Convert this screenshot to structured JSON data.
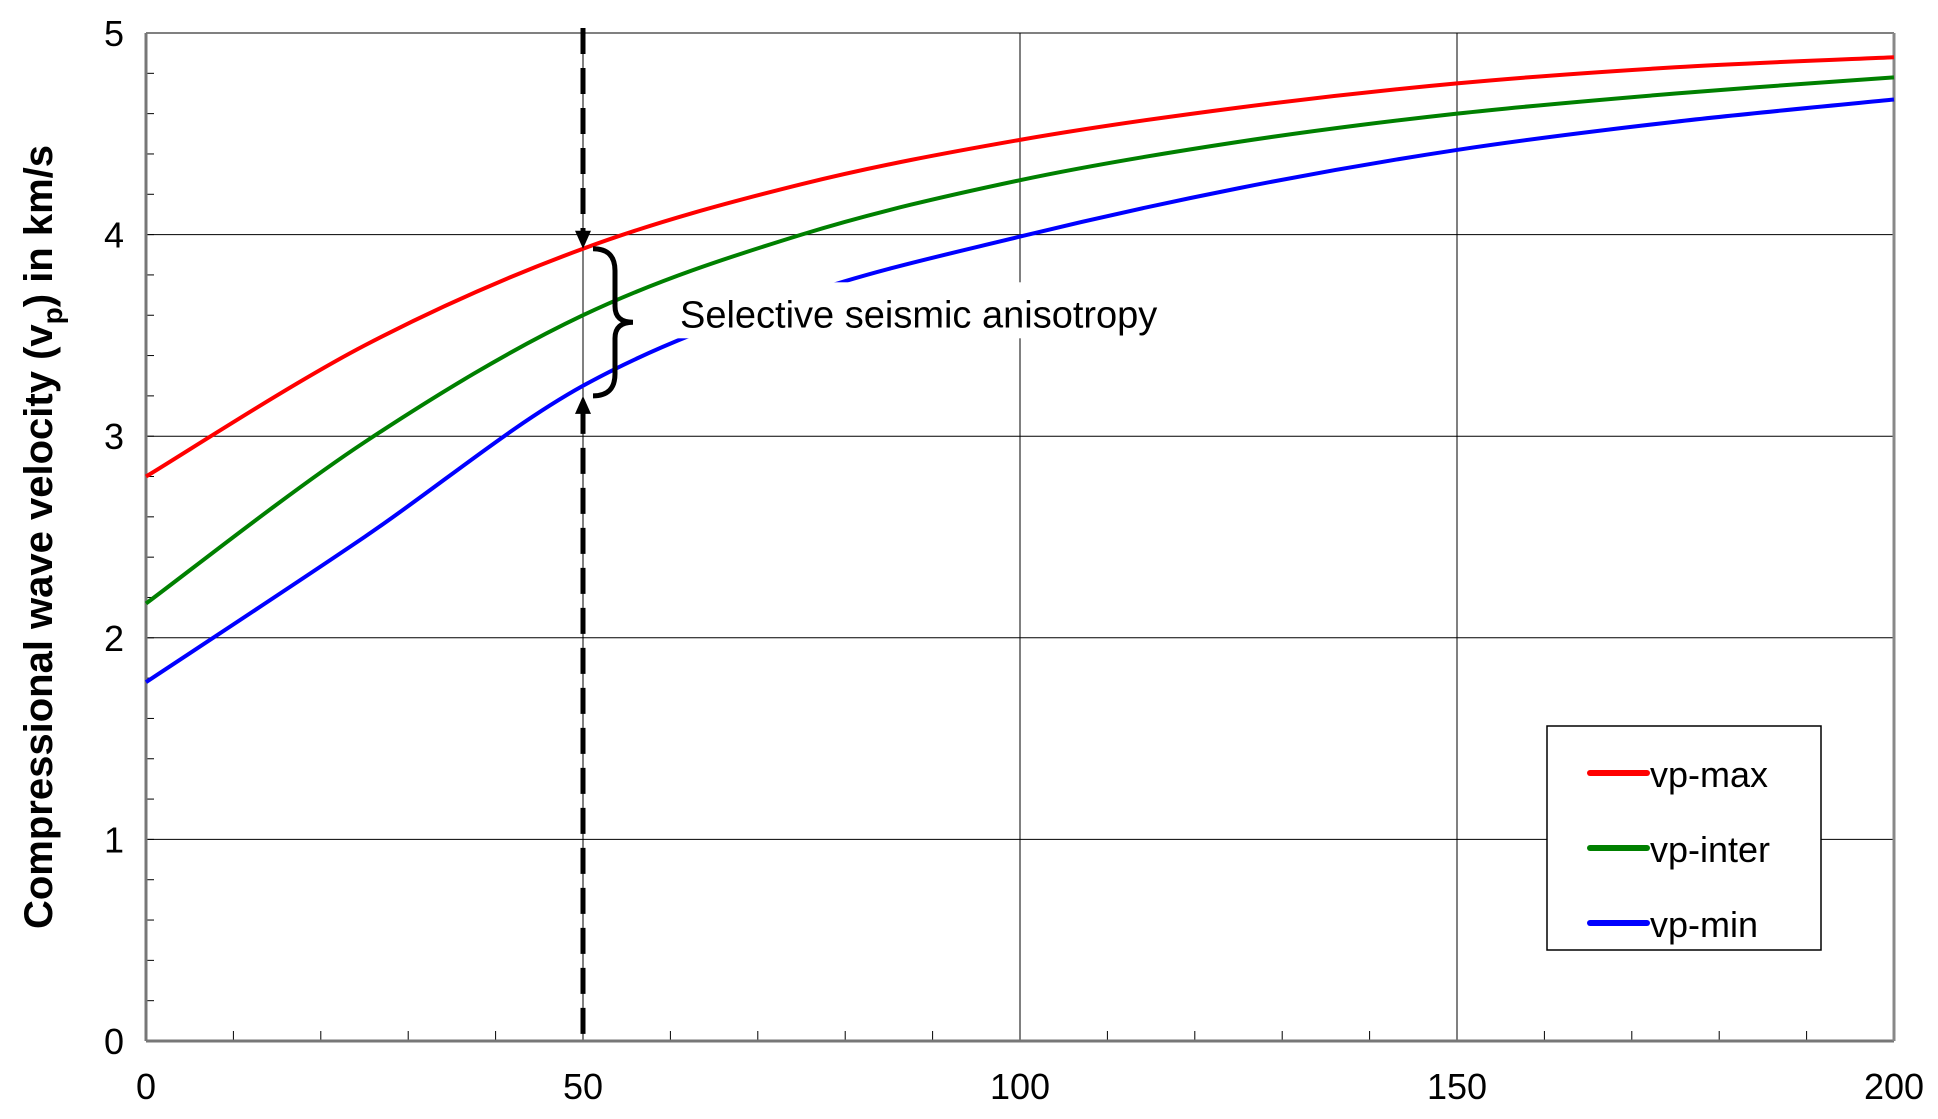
{
  "chart_data": {
    "type": "line",
    "title": "",
    "xlabel": "",
    "ylabel_parts": [
      "Compressional wave velocity (v",
      "p",
      ") in km/s"
    ],
    "xlim": [
      0,
      200
    ],
    "ylim": [
      0,
      5
    ],
    "xticks": [
      0,
      50,
      100,
      150,
      200
    ],
    "yticks": [
      0,
      1,
      2,
      3,
      4,
      5
    ],
    "grid": true,
    "legend_position": "bottom-right",
    "series": [
      {
        "name": "vp-max",
        "color": "#ff0000",
        "x": [
          0,
          25,
          50,
          75,
          100,
          125,
          150,
          175,
          200
        ],
        "values": [
          2.8,
          3.45,
          3.93,
          4.25,
          4.47,
          4.63,
          4.75,
          4.83,
          4.88
        ]
      },
      {
        "name": "vp-inter",
        "color": "#008000",
        "x": [
          0,
          25,
          50,
          75,
          100,
          125,
          150,
          175,
          200
        ],
        "values": [
          2.17,
          2.97,
          3.6,
          4.0,
          4.27,
          4.46,
          4.6,
          4.7,
          4.78
        ]
      },
      {
        "name": "vp-min",
        "color": "#0000ff",
        "x": [
          0,
          25,
          50,
          75,
          100,
          125,
          150,
          175,
          200
        ],
        "values": [
          1.78,
          2.5,
          3.25,
          3.7,
          3.99,
          4.23,
          4.42,
          4.56,
          4.67
        ]
      }
    ],
    "annotations": [
      {
        "text": "Selective seismic anisotropy",
        "x": 50,
        "y_range": [
          3.2,
          3.93
        ]
      }
    ],
    "reference_line": {
      "x": 50,
      "style": "dashed"
    }
  }
}
